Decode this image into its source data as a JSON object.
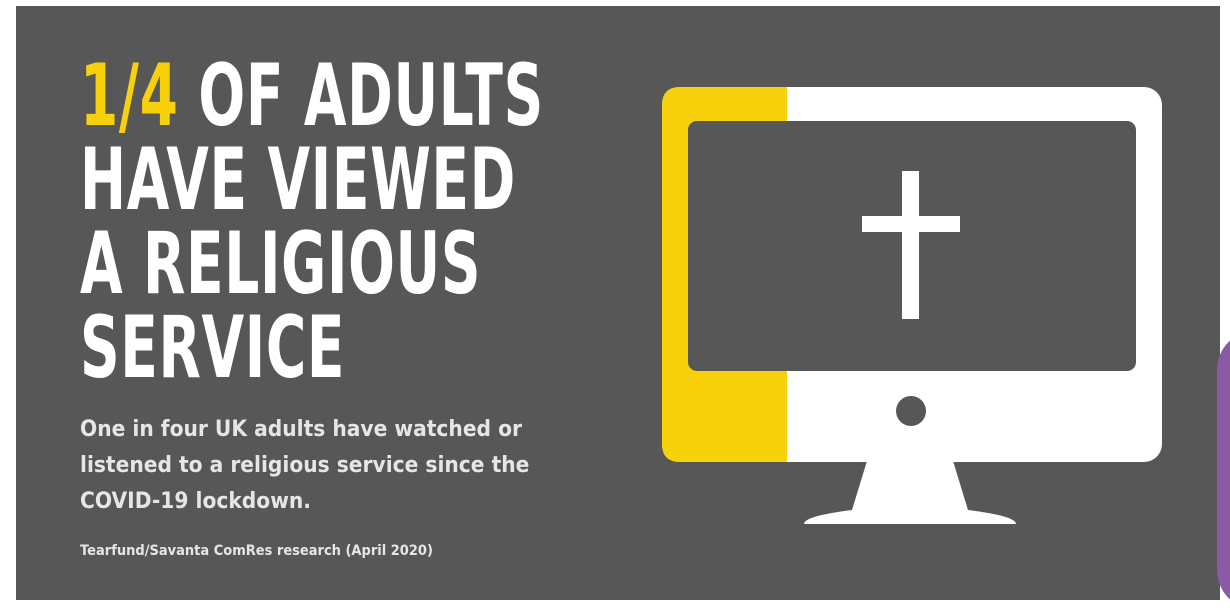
{
  "headline": {
    "accent": "1/4",
    "line1_rest": " OF ADULTS",
    "line2": "HAVE VIEWED",
    "line3": "A RELIGIOUS",
    "line4": "SERVICE"
  },
  "description": "One in four UK adults have watched or listened to a religious service since the COVID-19 lockdown.",
  "source": "Tearfund/Savanta ComRes research (April 2020)",
  "colors": {
    "background": "#575757",
    "accent": "#f7d10c",
    "text": "#ffffff",
    "secondary_text": "#e6e6e6",
    "edge": "#8a5aa6"
  },
  "icons": [
    "monitor-icon",
    "cross-icon"
  ]
}
